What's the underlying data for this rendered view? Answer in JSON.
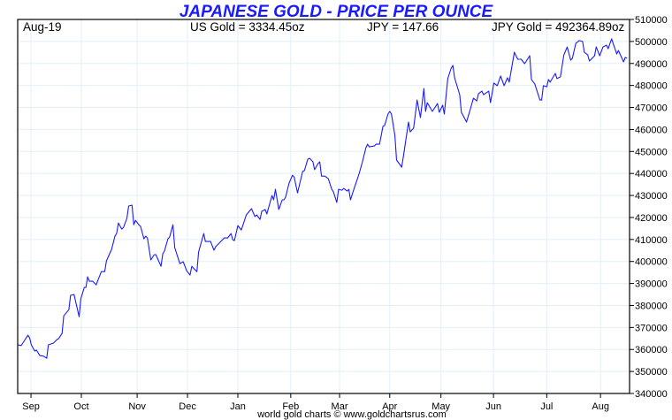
{
  "chart_data": {
    "type": "line",
    "title": "JAPANESE GOLD - PRICE PER OUNCE",
    "header": {
      "period": "Aug-19",
      "us_gold": "US Gold = 3334.45oz",
      "jpy_rate": "JPY = 147.66",
      "jpy_gold": "JPY Gold = 492364.89oz"
    },
    "footer": "world gold charts © www.goldchartsrus.com",
    "xlabel": "",
    "ylabel": "",
    "x_unit": "days from chart start",
    "xlim": [
      0,
      358
    ],
    "ylim": [
      340000,
      510000
    ],
    "y_ticks": [
      340000,
      350000,
      360000,
      370000,
      380000,
      390000,
      400000,
      410000,
      420000,
      430000,
      440000,
      450000,
      460000,
      470000,
      480000,
      490000,
      500000,
      510000
    ],
    "y_tick_labels": [
      "340000",
      "350000",
      "360000",
      "370000",
      "380000",
      "390000",
      "400000",
      "410000",
      "420000",
      "430000",
      "440000",
      "450000",
      "460000",
      "470000",
      "480000",
      "490000",
      "500000",
      "510000"
    ],
    "x_ticks": [
      {
        "label": "Sep",
        "day": 7.8
      },
      {
        "label": "Oct",
        "day": 37.3
      },
      {
        "label": "Nov",
        "day": 70
      },
      {
        "label": "Dec",
        "day": 99.5
      },
      {
        "label": "Jan",
        "day": 129
      },
      {
        "label": "Feb",
        "day": 160
      },
      {
        "label": "Mar",
        "day": 188.6
      },
      {
        "label": "Apr",
        "day": 218
      },
      {
        "label": "May",
        "day": 248
      },
      {
        "label": "Jun",
        "day": 278.8
      },
      {
        "label": "Jul",
        "day": 310
      },
      {
        "label": "Aug",
        "day": 341.5
      }
    ],
    "grid": true,
    "line_color": "#1a1aff",
    "grid_color": "#e2eff9",
    "series": [
      {
        "name": "JPY Gold",
        "x": [
          0,
          2,
          3,
          6,
          7,
          8,
          10,
          11,
          13,
          15,
          17,
          18,
          21,
          23,
          24,
          26,
          27,
          30,
          31,
          33,
          36,
          37,
          39,
          40,
          41,
          42,
          44,
          46,
          47,
          49,
          51,
          52,
          55,
          57,
          58,
          59,
          61,
          62,
          64,
          65,
          67,
          68,
          69,
          71,
          72,
          74,
          75,
          76,
          78,
          80,
          81,
          84,
          85,
          86,
          88,
          89,
          91,
          92,
          95,
          97,
          99,
          101,
          102,
          105,
          106,
          109,
          110,
          113,
          115,
          116,
          118,
          121,
          123,
          125,
          126,
          127,
          129,
          131,
          134,
          137,
          139,
          140,
          142,
          143,
          145,
          146,
          149,
          150,
          151,
          153,
          155,
          156,
          157,
          159,
          161,
          162,
          164,
          167,
          168,
          170,
          171,
          173,
          174,
          176,
          177,
          178,
          180,
          182,
          184,
          185,
          187,
          188,
          190,
          191,
          193,
          194,
          195,
          197,
          200,
          202,
          204,
          205,
          206,
          209,
          210,
          212,
          214,
          215,
          217,
          218,
          219,
          221,
          222,
          225,
          226,
          229,
          230,
          232,
          234,
          236,
          238,
          239,
          240,
          243,
          246,
          247,
          249,
          250,
          252,
          254,
          255,
          256,
          259,
          260,
          263,
          265,
          267,
          269,
          270,
          272,
          273,
          276,
          277,
          279,
          281,
          283,
          285,
          287,
          288,
          291,
          293,
          295,
          297,
          300,
          301,
          303,
          306,
          307,
          308,
          310,
          311,
          312,
          315,
          316,
          318,
          320,
          322,
          324,
          325,
          327,
          329,
          331,
          332,
          334,
          335,
          338,
          339,
          341,
          343,
          345,
          346,
          348,
          351,
          352,
          355,
          356,
          357
        ],
        "values": [
          362100,
          361800,
          362900,
          366500,
          365300,
          362100,
          359300,
          359700,
          357200,
          357000,
          356000,
          362100,
          362900,
          364500,
          364900,
          367300,
          375300,
          378100,
          384600,
          385000,
          374900,
          383000,
          388200,
          388200,
          393000,
          391000,
          391000,
          389400,
          391400,
          395400,
          395400,
          400300,
          405500,
          411500,
          412700,
          417500,
          414700,
          415500,
          419600,
          425200,
          425600,
          416700,
          418700,
          416700,
          415900,
          410300,
          411500,
          410700,
          400700,
          403100,
          403100,
          397800,
          403500,
          404700,
          410300,
          411100,
          416700,
          406300,
          399000,
          399900,
          395800,
          393800,
          397800,
          395400,
          404300,
          412700,
          409100,
          409100,
          405100,
          406700,
          408300,
          410700,
          410700,
          412700,
          409900,
          409500,
          416300,
          414300,
          421200,
          424000,
          420400,
          421200,
          419100,
          422800,
          423600,
          421600,
          430000,
          428000,
          432800,
          423600,
          428000,
          428000,
          429200,
          435600,
          439200,
          438400,
          431200,
          440900,
          441300,
          446500,
          446900,
          445300,
          441700,
          444500,
          445300,
          438800,
          438800,
          437600,
          432800,
          431600,
          426800,
          432800,
          432400,
          433200,
          432000,
          432800,
          428000,
          432800,
          439700,
          445300,
          451700,
          453300,
          452100,
          452500,
          453300,
          453300,
          461400,
          461800,
          467000,
          468200,
          467000,
          457300,
          446100,
          442900,
          447700,
          463400,
          458900,
          460600,
          473400,
          465400,
          478600,
          468200,
          472200,
          468200,
          471800,
          467800,
          471000,
          467000,
          483100,
          487900,
          489100,
          483500,
          475800,
          467800,
          463400,
          468600,
          474200,
          473000,
          476200,
          477400,
          475800,
          477400,
          472200,
          481100,
          479900,
          484300,
          479900,
          483500,
          481500,
          495100,
          491900,
          491900,
          489900,
          493500,
          482700,
          480700,
          473400,
          473400,
          479900,
          479400,
          482700,
          481500,
          485500,
          483100,
          483900,
          493900,
          497500,
          491500,
          492300,
          499100,
          500400,
          500000,
          495100,
          493900,
          491100,
          493500,
          497500,
          493500,
          497500,
          498300,
          496700,
          501200,
          494300,
          495900,
          490700,
          492700,
          492400
        ]
      }
    ]
  }
}
